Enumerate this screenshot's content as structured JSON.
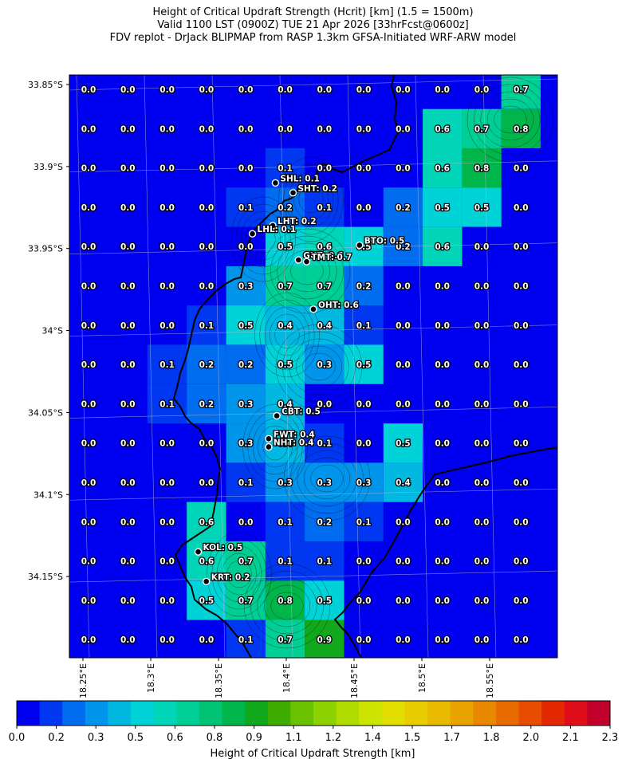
{
  "titles": {
    "line1": "Height of Critical Updraft Strength (Hcrit) [km] (1.5 = 1500m)",
    "line2": "Valid 1100 LST (0900Z) TUE 21 Apr 2026 [33hrFcst@0600z]",
    "line3": "FDV replot - DrJack BLIPMAP from RASP 1.3km GFSA-Initiated WRF-ARW model"
  },
  "chart_data": {
    "type": "heatmap",
    "title": "Height of Critical Updraft Strength (Hcrit) [km] (1.5 = 1500m)",
    "xlabel": "",
    "ylabel": "",
    "lat_ticks": [
      "33.85°S",
      "33.9°S",
      "33.95°S",
      "34°S",
      "34.05°S",
      "34.1°S",
      "34.15°S"
    ],
    "lon_ticks": [
      "18.25°E",
      "18.3°E",
      "18.35°E",
      "18.4°E",
      "18.45°E",
      "18.5°E",
      "18.55°E"
    ],
    "grid": true,
    "value_grid": [
      [
        "0.0",
        "0.0",
        "0.0",
        "0.0",
        "0.0",
        "0.0",
        "0.0",
        "0.0",
        "0.0",
        "0.0",
        "0.0",
        "0.7"
      ],
      [
        "0.0",
        "0.0",
        "0.0",
        "0.0",
        "0.0",
        "0.0",
        "0.0",
        "0.0",
        "0.0",
        "0.6",
        "0.7",
        "0.8"
      ],
      [
        "0.0",
        "0.0",
        "0.0",
        "0.0",
        "0.0",
        "0.1",
        "0.0",
        "0.0",
        "0.0",
        "0.6",
        "0.8",
        "0.0"
      ],
      [
        "0.0",
        "0.0",
        "0.0",
        "0.0",
        "0.1",
        "0.2",
        "0.1",
        "0.0",
        "0.2",
        "0.5",
        "0.5",
        "0.0"
      ],
      [
        "0.0",
        "0.0",
        "0.0",
        "0.0",
        "0.0",
        "0.5",
        "0.6",
        "0.5",
        "0.2",
        "0.6",
        "0.0",
        "0.0"
      ],
      [
        "0.0",
        "0.0",
        "0.0",
        "0.0",
        "0.3",
        "0.7",
        "0.7",
        "0.2",
        "0.0",
        "0.0",
        "0.0",
        "0.0"
      ],
      [
        "0.0",
        "0.0",
        "0.0",
        "0.1",
        "0.5",
        "0.4",
        "0.4",
        "0.1",
        "0.0",
        "0.0",
        "0.0",
        "0.0"
      ],
      [
        "0.0",
        "0.0",
        "0.1",
        "0.2",
        "0.2",
        "0.5",
        "0.3",
        "0.5",
        "0.0",
        "0.0",
        "0.0",
        "0.0"
      ],
      [
        "0.0",
        "0.0",
        "0.1",
        "0.2",
        "0.3",
        "0.4",
        "0.0",
        "0.0",
        "0.0",
        "0.0",
        "0.0",
        "0.0"
      ],
      [
        "0.0",
        "0.0",
        "0.0",
        "0.0",
        "0.3",
        "0.4",
        "0.1",
        "0.0",
        "0.5",
        "0.0",
        "0.0",
        "0.0"
      ],
      [
        "0.0",
        "0.0",
        "0.0",
        "0.0",
        "0.1",
        "0.3",
        "0.3",
        "0.3",
        "0.4",
        "0.0",
        "0.0",
        "0.0"
      ],
      [
        "0.0",
        "0.0",
        "0.0",
        "0.6",
        "0.0",
        "0.1",
        "0.2",
        "0.1",
        "0.0",
        "0.0",
        "0.0",
        "0.0"
      ],
      [
        "0.0",
        "0.0",
        "0.0",
        "0.6",
        "0.7",
        "0.1",
        "0.1",
        "0.0",
        "0.0",
        "0.0",
        "0.0",
        "0.0"
      ],
      [
        "0.0",
        "0.0",
        "0.0",
        "0.5",
        "0.7",
        "0.8",
        "0.5",
        "0.0",
        "0.0",
        "0.0",
        "0.0",
        "0.0"
      ],
      [
        "0.0",
        "0.0",
        "0.0",
        "0.0",
        "0.1",
        "0.7",
        "0.9",
        "0.0",
        "0.0",
        "0.0",
        "0.0",
        "0.0"
      ]
    ],
    "stations": [
      {
        "name": "SHL",
        "value": "0.1",
        "lon": 18.392,
        "lat": -33.91
      },
      {
        "name": "SHT",
        "value": "0.2",
        "lon": 18.405,
        "lat": -33.916
      },
      {
        "name": "LHT",
        "value": "0.2",
        "lon": 18.39,
        "lat": -33.936
      },
      {
        "name": "LHL",
        "value": "0.1",
        "lon": 18.375,
        "lat": -33.941
      },
      {
        "name": "BTO",
        "value": "0.5",
        "lon": 18.454,
        "lat": -33.948
      },
      {
        "name": "GUT",
        "value": "0.6",
        "lon": 18.409,
        "lat": -33.957
      },
      {
        "name": "TMT",
        "value": "0.7",
        "lon": 18.415,
        "lat": -33.958
      },
      {
        "name": "OHT",
        "value": "0.6",
        "lon": 18.42,
        "lat": -33.987
      },
      {
        "name": "CBT",
        "value": "0.5",
        "lon": 18.393,
        "lat": -34.052
      },
      {
        "name": "FWT",
        "value": "0.4",
        "lon": 18.387,
        "lat": -34.066
      },
      {
        "name": "NHT",
        "value": "0.4",
        "lon": 18.387,
        "lat": -34.071
      },
      {
        "name": "KOL",
        "value": "0.5",
        "lon": 18.335,
        "lat": -34.135
      },
      {
        "name": "KRT",
        "value": "0.2",
        "lon": 18.341,
        "lat": -34.153
      }
    ],
    "colorbar": {
      "label": "Height of Critical Updraft Strength [km]",
      "tick_labels": [
        "0.0",
        "0.2",
        "0.3",
        "0.5",
        "0.6",
        "0.8",
        "0.9",
        "1.1",
        "1.2",
        "1.4",
        "1.5",
        "1.7",
        "1.8",
        "2.0",
        "2.1",
        "2.3"
      ],
      "colors": [
        "#0000f0",
        "#0037f0",
        "#006cf0",
        "#0095ea",
        "#00b8e0",
        "#00d3d8",
        "#00d5b8",
        "#00cf95",
        "#00c473",
        "#00b64a",
        "#11a81b",
        "#3fad00",
        "#69c100",
        "#8ed100",
        "#b0dc00",
        "#cde300",
        "#e2de00",
        "#e8ce00",
        "#e9b900",
        "#e9a300",
        "#e88800",
        "#e86b00",
        "#e84c00",
        "#e42900",
        "#e00d1a",
        "#c2002c"
      ],
      "vmin": 0.0,
      "vmax": 2.3
    }
  }
}
